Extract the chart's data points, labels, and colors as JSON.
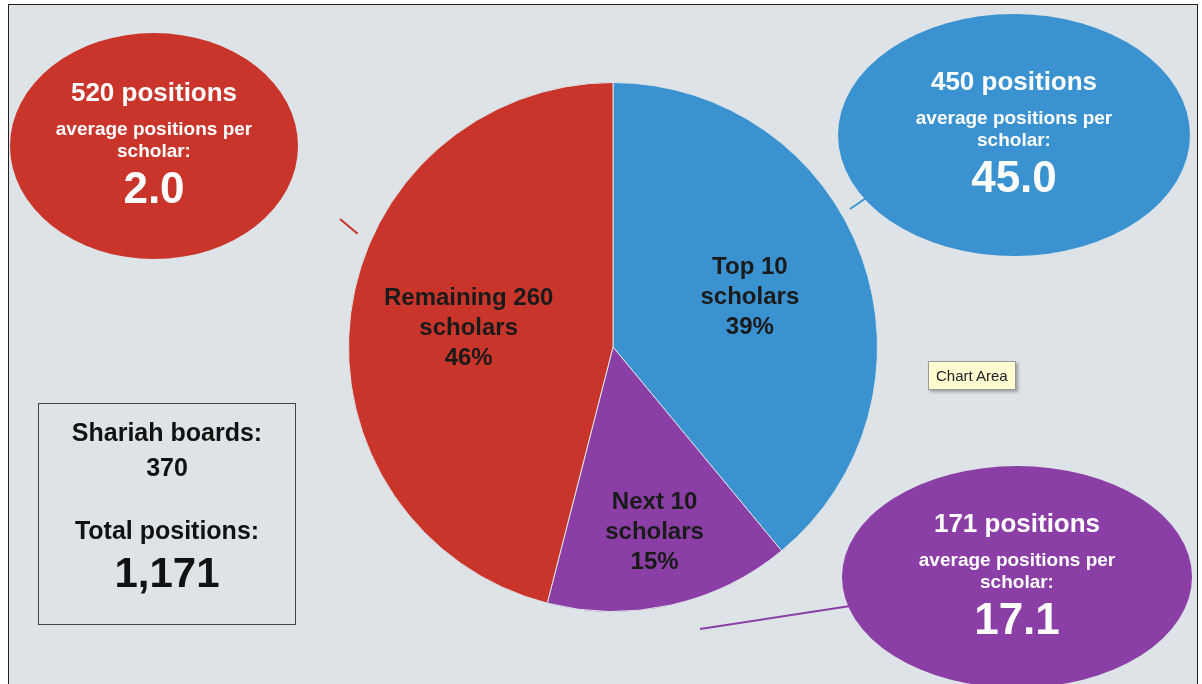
{
  "chart_data": {
    "type": "pie",
    "categories": [
      "Top 10 scholars",
      "Next 10 scholars",
      "Remaining 260 scholars"
    ],
    "values": [
      39,
      15,
      46
    ],
    "colors": [
      "#3a93d0",
      "#8b3fa6",
      "#c9352a"
    ],
    "value_labels": [
      "39%",
      "15%",
      "46%"
    ],
    "annotations": [
      "520 positions",
      "average positions per scholar:",
      "2.0",
      "450 positions",
      "average positions per scholar:",
      "45.0",
      "171 positions",
      "average positions per scholar:",
      "17.1",
      "Shariah boards:",
      "370",
      "Total positions:",
      "1,171",
      "Chart Area"
    ]
  }
}
